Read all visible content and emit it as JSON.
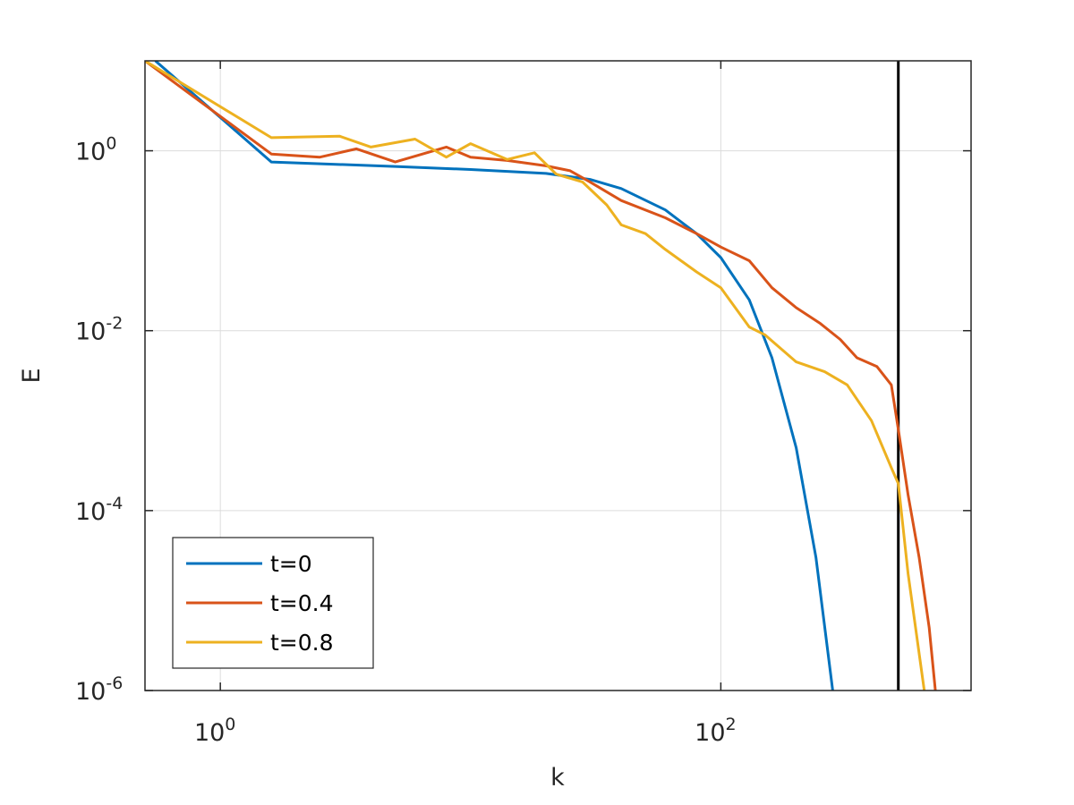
{
  "chart_data": {
    "type": "line",
    "xlabel": "k",
    "ylabel": "E",
    "xscale": "log",
    "yscale": "log",
    "xlim": [
      0.5,
      1000
    ],
    "ylim": [
      1e-06,
      10
    ],
    "grid": true,
    "legend_placement": "bottom-left",
    "x_ticks": [
      {
        "value": 1,
        "base": "10",
        "exp": "0"
      },
      {
        "value": 100,
        "base": "10",
        "exp": "2"
      }
    ],
    "y_ticks": [
      {
        "value": 1,
        "base": "10",
        "exp": "0"
      },
      {
        "value": 0.01,
        "base": "10",
        "exp": "-2"
      },
      {
        "value": 0.0001,
        "base": "10",
        "exp": "-4"
      },
      {
        "value": 1e-06,
        "base": "10",
        "exp": "-6"
      }
    ],
    "vline": {
      "x": 512,
      "color": "#000000"
    },
    "series": [
      {
        "name": "t=0",
        "color": "#0072BD",
        "points": [
          [
            0.55,
            10
          ],
          [
            1.6,
            0.75
          ],
          [
            5,
            0.67
          ],
          [
            10,
            0.62
          ],
          [
            20,
            0.56
          ],
          [
            30,
            0.48
          ],
          [
            40,
            0.38
          ],
          [
            60,
            0.22
          ],
          [
            80,
            0.12
          ],
          [
            100,
            0.065
          ],
          [
            130,
            0.022
          ],
          [
            160,
            0.005
          ],
          [
            200,
            0.0005
          ],
          [
            240,
            3e-05
          ],
          [
            280,
            1e-06
          ]
        ]
      },
      {
        "name": "t=0.4",
        "color": "#D95319",
        "points": [
          [
            0.5,
            10
          ],
          [
            1.6,
            0.92
          ],
          [
            2.5,
            0.85
          ],
          [
            3.5,
            1.05
          ],
          [
            5,
            0.75
          ],
          [
            8,
            1.1
          ],
          [
            10,
            0.85
          ],
          [
            14,
            0.78
          ],
          [
            20,
            0.68
          ],
          [
            25,
            0.6
          ],
          [
            30,
            0.45
          ],
          [
            40,
            0.28
          ],
          [
            60,
            0.18
          ],
          [
            80,
            0.12
          ],
          [
            100,
            0.085
          ],
          [
            130,
            0.06
          ],
          [
            160,
            0.03
          ],
          [
            200,
            0.018
          ],
          [
            250,
            0.012
          ],
          [
            300,
            0.008
          ],
          [
            350,
            0.005
          ],
          [
            420,
            0.004
          ],
          [
            480,
            0.0025
          ],
          [
            512,
            0.0008
          ],
          [
            560,
            0.00015
          ],
          [
            620,
            3e-05
          ],
          [
            680,
            5e-06
          ],
          [
            720,
            1e-06
          ]
        ]
      },
      {
        "name": "t=0.8",
        "color": "#EDB120",
        "points": [
          [
            0.5,
            10
          ],
          [
            1.6,
            1.4
          ],
          [
            3,
            1.45
          ],
          [
            4,
            1.1
          ],
          [
            6,
            1.35
          ],
          [
            8,
            0.85
          ],
          [
            10,
            1.2
          ],
          [
            14,
            0.8
          ],
          [
            18,
            0.95
          ],
          [
            22,
            0.55
          ],
          [
            28,
            0.45
          ],
          [
            35,
            0.25
          ],
          [
            40,
            0.15
          ],
          [
            50,
            0.12
          ],
          [
            60,
            0.08
          ],
          [
            80,
            0.045
          ],
          [
            100,
            0.03
          ],
          [
            130,
            0.011
          ],
          [
            150,
            0.009
          ],
          [
            200,
            0.0045
          ],
          [
            260,
            0.0035
          ],
          [
            320,
            0.0025
          ],
          [
            400,
            0.001
          ],
          [
            480,
            0.0003
          ],
          [
            512,
            0.0002
          ],
          [
            560,
            2e-05
          ],
          [
            650,
            1e-06
          ]
        ]
      }
    ]
  }
}
